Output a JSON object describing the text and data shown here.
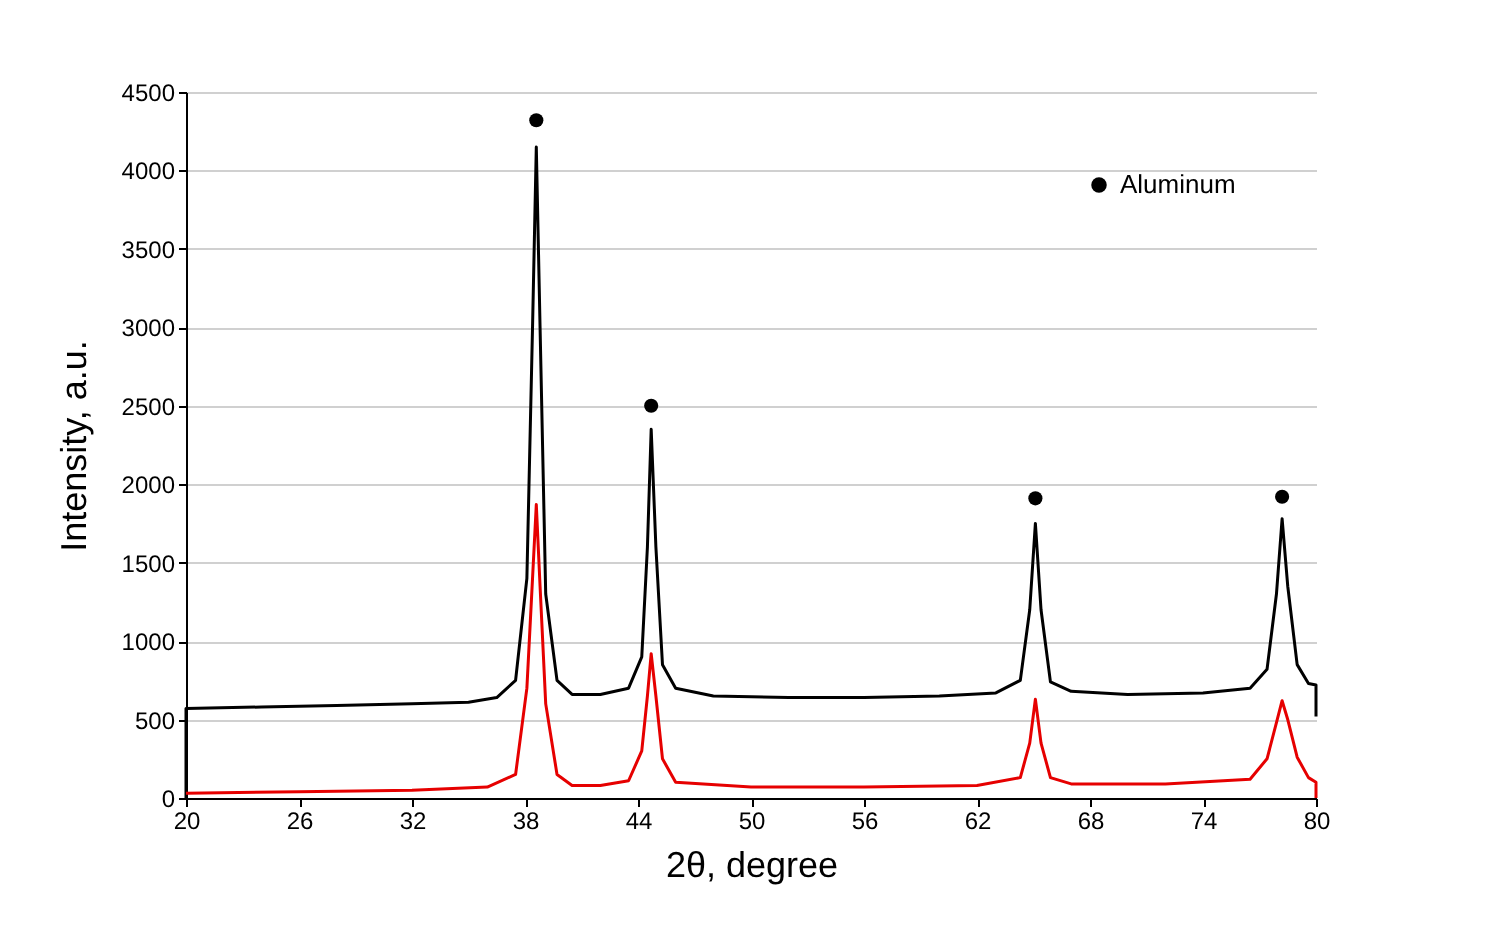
{
  "chart_data": {
    "type": "line",
    "xlabel": "2θ, degree",
    "ylabel": "Intensity, a.u.",
    "xlim": [
      20,
      80
    ],
    "xticks": [
      20,
      26,
      32,
      38,
      44,
      50,
      56,
      62,
      68,
      74,
      80
    ],
    "ylim": [
      0,
      4500
    ],
    "yticks": [
      0,
      500,
      1000,
      1500,
      2000,
      2500,
      3000,
      3500,
      4000,
      4500
    ],
    "grid": "y",
    "legend": "top right",
    "series": [
      {
        "color": "#000000",
        "x": [
          20,
          20,
          24,
          28,
          32,
          35,
          36.5,
          37.5,
          38.1,
          38.4,
          38.6,
          38.8,
          39.1,
          39.7,
          40.5,
          42,
          43.5,
          44.2,
          44.5,
          44.7,
          44.95,
          45.3,
          46,
          48,
          52,
          56,
          60,
          63,
          64.3,
          64.8,
          65.1,
          65.4,
          65.9,
          67,
          70,
          74,
          76.5,
          77.4,
          77.9,
          78.2,
          78.5,
          79,
          79.6,
          80,
          80
        ],
        "values": [
          0,
          570,
          580,
          590,
          600,
          610,
          640,
          750,
          1400,
          3000,
          4150,
          3000,
          1300,
          750,
          660,
          660,
          700,
          900,
          1600,
          2350,
          1600,
          850,
          700,
          650,
          640,
          640,
          650,
          670,
          750,
          1200,
          1750,
          1200,
          740,
          680,
          660,
          670,
          700,
          820,
          1300,
          1780,
          1350,
          850,
          730,
          720,
          520
        ]
      },
      {
        "color": "#e60000",
        "x": [
          20,
          26,
          32,
          36,
          37.5,
          38.1,
          38.4,
          38.6,
          38.8,
          39.1,
          39.7,
          40.5,
          42,
          43.5,
          44.2,
          44.5,
          44.7,
          44.95,
          45.3,
          46,
          50,
          56,
          62,
          64.3,
          64.8,
          65.1,
          65.4,
          65.9,
          67,
          72,
          76.5,
          77.4,
          77.9,
          78.2,
          78.5,
          79,
          79.6,
          80,
          80
        ],
        "values": [
          30,
          40,
          50,
          70,
          150,
          700,
          1400,
          1870,
          1350,
          600,
          150,
          80,
          80,
          110,
          300,
          650,
          920,
          650,
          250,
          100,
          70,
          70,
          80,
          130,
          350,
          630,
          350,
          130,
          90,
          90,
          120,
          250,
          480,
          620,
          500,
          260,
          130,
          100,
          0
        ]
      },
      {
        "type": "scatter",
        "name": "Aluminum",
        "color": "#000000",
        "marker": "circle",
        "x": [
          38.6,
          44.7,
          65.1,
          78.2
        ],
        "values": [
          4320,
          2500,
          1910,
          1920
        ]
      }
    ]
  }
}
